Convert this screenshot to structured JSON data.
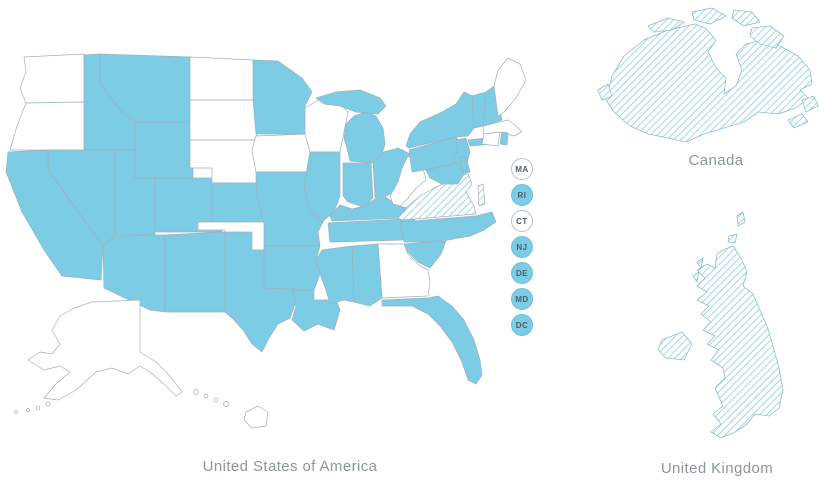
{
  "colors": {
    "selected_fill": "#7dcce6",
    "unselected_fill": "#ffffff",
    "state_outline": "#9fb0bd",
    "hatch_stroke": "#7dcce6",
    "hatched_outline": "#8cbdd1",
    "caption_text": "#8b95a1",
    "badge_text": "#4e5d69"
  },
  "regions": {
    "us": {
      "label": "United States of America"
    },
    "canada": {
      "label": "Canada"
    },
    "uk": {
      "label": "United Kingdom"
    }
  },
  "badges": [
    {
      "code": "MA",
      "filled": false
    },
    {
      "code": "RI",
      "filled": true
    },
    {
      "code": "CT",
      "filled": false
    },
    {
      "code": "NJ",
      "filled": true
    },
    {
      "code": "DE",
      "filled": true
    },
    {
      "code": "MD",
      "filled": true
    },
    {
      "code": "DC",
      "filled": true
    }
  ],
  "us_states": {
    "selected": [
      "CA",
      "NV",
      "ID",
      "MT",
      "WY",
      "UT",
      "CO",
      "AZ",
      "NM",
      "KS",
      "TX",
      "MN",
      "MO",
      "AR",
      "LA",
      "IL",
      "MI",
      "IN",
      "OH",
      "KY",
      "TN",
      "MS",
      "AL",
      "FL",
      "SC",
      "NC",
      "PA",
      "NY",
      "VT",
      "NH",
      "NJ",
      "DE",
      "MD",
      "RI"
    ],
    "unselected": [
      "WA",
      "OR",
      "ND",
      "SD",
      "NE",
      "IA",
      "WI",
      "OK",
      "GA",
      "WV",
      "ME",
      "MA",
      "CT",
      "AK",
      "HI"
    ],
    "hatched": [
      "VA"
    ],
    "hatched_regions": [
      "CANADA",
      "UK"
    ]
  }
}
